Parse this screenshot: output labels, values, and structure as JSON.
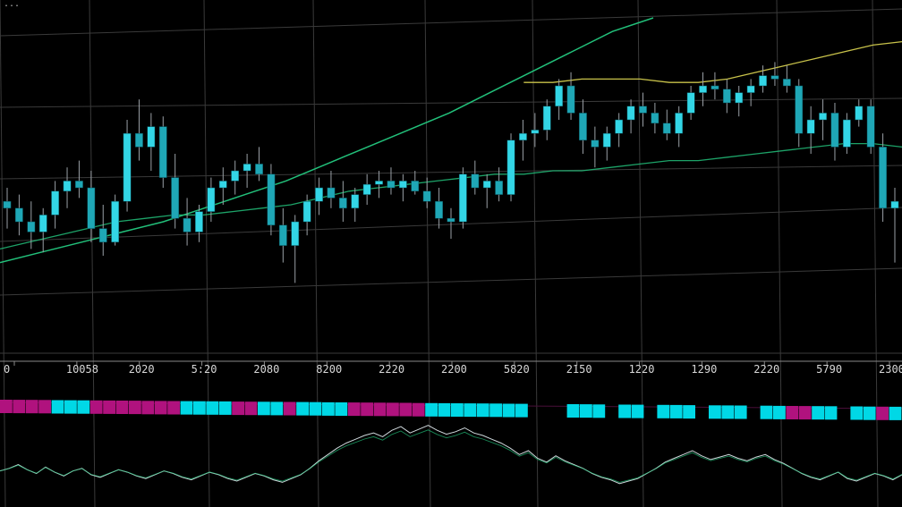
{
  "colors": {
    "background": "#000000",
    "grid": "#3a3a3a",
    "candle_up": "#33d6e6",
    "candle_up_dim": "#1fa7b6",
    "wick": "#9aa0a6",
    "ma_fast": "#22c07a",
    "ma_slow": "#c8c24a",
    "oscillator": "#cfd8dc",
    "signal_bull": "#00d8e6",
    "signal_bear": "#b0127e"
  },
  "header": {
    "text": "..."
  },
  "chart_data": {
    "type": "candlestick",
    "grid": true,
    "x_tick_labels": [
      "0",
      "10058",
      "2020",
      "5:20",
      "2080",
      "8200",
      "2220",
      "2200",
      "5820",
      "2150",
      "1220",
      "1290",
      "2220",
      "5790",
      "2300"
    ],
    "price_range": [
      0,
      100
    ],
    "candles": [
      {
        "o": 46,
        "h": 50,
        "l": 38,
        "c": 44
      },
      {
        "o": 44,
        "h": 48,
        "l": 36,
        "c": 40
      },
      {
        "o": 40,
        "h": 46,
        "l": 32,
        "c": 37
      },
      {
        "o": 37,
        "h": 44,
        "l": 31,
        "c": 42
      },
      {
        "o": 42,
        "h": 52,
        "l": 38,
        "c": 49
      },
      {
        "o": 49,
        "h": 56,
        "l": 44,
        "c": 52
      },
      {
        "o": 52,
        "h": 58,
        "l": 47,
        "c": 50
      },
      {
        "o": 50,
        "h": 55,
        "l": 34,
        "c": 38
      },
      {
        "o": 38,
        "h": 45,
        "l": 30,
        "c": 34
      },
      {
        "o": 34,
        "h": 48,
        "l": 33,
        "c": 46
      },
      {
        "o": 46,
        "h": 70,
        "l": 43,
        "c": 66
      },
      {
        "o": 66,
        "h": 76,
        "l": 58,
        "c": 62
      },
      {
        "o": 62,
        "h": 72,
        "l": 55,
        "c": 68
      },
      {
        "o": 68,
        "h": 71,
        "l": 50,
        "c": 53
      },
      {
        "o": 53,
        "h": 60,
        "l": 38,
        "c": 41
      },
      {
        "o": 41,
        "h": 47,
        "l": 33,
        "c": 37
      },
      {
        "o": 37,
        "h": 45,
        "l": 34,
        "c": 43
      },
      {
        "o": 43,
        "h": 53,
        "l": 40,
        "c": 50
      },
      {
        "o": 50,
        "h": 56,
        "l": 45,
        "c": 52
      },
      {
        "o": 52,
        "h": 58,
        "l": 48,
        "c": 55
      },
      {
        "o": 55,
        "h": 60,
        "l": 50,
        "c": 57
      },
      {
        "o": 57,
        "h": 62,
        "l": 52,
        "c": 54
      },
      {
        "o": 54,
        "h": 57,
        "l": 36,
        "c": 39
      },
      {
        "o": 39,
        "h": 44,
        "l": 28,
        "c": 33
      },
      {
        "o": 33,
        "h": 42,
        "l": 22,
        "c": 40
      },
      {
        "o": 40,
        "h": 48,
        "l": 36,
        "c": 46
      },
      {
        "o": 46,
        "h": 53,
        "l": 42,
        "c": 50
      },
      {
        "o": 50,
        "h": 55,
        "l": 44,
        "c": 47
      },
      {
        "o": 47,
        "h": 52,
        "l": 40,
        "c": 44
      },
      {
        "o": 44,
        "h": 50,
        "l": 40,
        "c": 48
      },
      {
        "o": 48,
        "h": 54,
        "l": 45,
        "c": 51
      },
      {
        "o": 51,
        "h": 55,
        "l": 47,
        "c": 52
      },
      {
        "o": 52,
        "h": 56,
        "l": 48,
        "c": 50
      },
      {
        "o": 50,
        "h": 54,
        "l": 46,
        "c": 52
      },
      {
        "o": 52,
        "h": 55,
        "l": 48,
        "c": 49
      },
      {
        "o": 49,
        "h": 53,
        "l": 44,
        "c": 46
      },
      {
        "o": 46,
        "h": 50,
        "l": 38,
        "c": 41
      },
      {
        "o": 41,
        "h": 44,
        "l": 35,
        "c": 40
      },
      {
        "o": 40,
        "h": 56,
        "l": 38,
        "c": 54
      },
      {
        "o": 54,
        "h": 58,
        "l": 48,
        "c": 50
      },
      {
        "o": 50,
        "h": 54,
        "l": 44,
        "c": 52
      },
      {
        "o": 52,
        "h": 56,
        "l": 46,
        "c": 48
      },
      {
        "o": 48,
        "h": 66,
        "l": 46,
        "c": 64
      },
      {
        "o": 64,
        "h": 70,
        "l": 58,
        "c": 66
      },
      {
        "o": 66,
        "h": 72,
        "l": 62,
        "c": 67
      },
      {
        "o": 67,
        "h": 76,
        "l": 64,
        "c": 74
      },
      {
        "o": 74,
        "h": 82,
        "l": 70,
        "c": 80
      },
      {
        "o": 80,
        "h": 84,
        "l": 70,
        "c": 72
      },
      {
        "o": 72,
        "h": 76,
        "l": 60,
        "c": 64
      },
      {
        "o": 64,
        "h": 68,
        "l": 56,
        "c": 62
      },
      {
        "o": 62,
        "h": 68,
        "l": 58,
        "c": 66
      },
      {
        "o": 66,
        "h": 72,
        "l": 62,
        "c": 70
      },
      {
        "o": 70,
        "h": 76,
        "l": 66,
        "c": 74
      },
      {
        "o": 74,
        "h": 78,
        "l": 68,
        "c": 72
      },
      {
        "o": 72,
        "h": 75,
        "l": 66,
        "c": 69
      },
      {
        "o": 69,
        "h": 73,
        "l": 64,
        "c": 66
      },
      {
        "o": 66,
        "h": 74,
        "l": 62,
        "c": 72
      },
      {
        "o": 72,
        "h": 80,
        "l": 70,
        "c": 78
      },
      {
        "o": 78,
        "h": 84,
        "l": 74,
        "c": 80
      },
      {
        "o": 80,
        "h": 84,
        "l": 76,
        "c": 79
      },
      {
        "o": 79,
        "h": 82,
        "l": 72,
        "c": 75
      },
      {
        "o": 75,
        "h": 80,
        "l": 71,
        "c": 78
      },
      {
        "o": 78,
        "h": 82,
        "l": 74,
        "c": 80
      },
      {
        "o": 80,
        "h": 86,
        "l": 78,
        "c": 83
      },
      {
        "o": 83,
        "h": 87,
        "l": 80,
        "c": 82
      },
      {
        "o": 82,
        "h": 86,
        "l": 78,
        "c": 80
      },
      {
        "o": 80,
        "h": 82,
        "l": 62,
        "c": 66
      },
      {
        "o": 66,
        "h": 74,
        "l": 60,
        "c": 70
      },
      {
        "o": 70,
        "h": 76,
        "l": 64,
        "c": 72
      },
      {
        "o": 72,
        "h": 75,
        "l": 58,
        "c": 62
      },
      {
        "o": 62,
        "h": 72,
        "l": 60,
        "c": 70
      },
      {
        "o": 70,
        "h": 76,
        "l": 68,
        "c": 74
      },
      {
        "o": 74,
        "h": 76,
        "l": 60,
        "c": 62
      },
      {
        "o": 62,
        "h": 66,
        "l": 40,
        "c": 44
      },
      {
        "o": 44,
        "h": 50,
        "l": 28,
        "c": 46
      }
    ],
    "ma_fast": [
      32,
      34,
      36,
      38,
      40,
      41,
      42,
      42,
      43,
      44,
      45,
      47,
      49,
      50,
      51,
      52,
      53,
      54,
      54,
      55,
      55,
      56,
      57,
      58,
      58,
      59,
      60,
      61,
      62,
      63,
      63,
      62
    ],
    "ma_slow": [
      null,
      null,
      null,
      null,
      null,
      null,
      null,
      null,
      null,
      null,
      null,
      null,
      null,
      null,
      null,
      null,
      null,
      null,
      81,
      81,
      82,
      82,
      82,
      81,
      81,
      82,
      84,
      86,
      88,
      90,
      92,
      93
    ],
    "trend_line": [
      28,
      31,
      34,
      37,
      40,
      44,
      48,
      52,
      57,
      62,
      67,
      72,
      78,
      84,
      90,
      96,
      100
    ],
    "signal_strip": [
      "bear",
      "bear",
      "bear",
      "bear",
      "bull",
      "bull",
      "bull",
      "bear",
      "bear",
      "bear",
      "bear",
      "bear",
      "bear",
      "bear",
      "bull",
      "bull",
      "bull",
      "bull",
      "bear",
      "bear",
      "bull",
      "bull",
      "bear",
      "bull",
      "bull",
      "bull",
      "bull",
      "bear",
      "bear",
      "bear",
      "bear",
      "bear",
      "bear",
      "bull",
      "bull",
      "bull",
      "bull",
      "bull",
      "bull",
      "bull",
      "bull",
      "none",
      "none",
      "none",
      "bull",
      "bull",
      "bull",
      "none",
      "bull",
      "bull",
      "none",
      "bull",
      "bull",
      "bull",
      "none",
      "bull",
      "bull",
      "bull",
      "none",
      "bull",
      "bull",
      "bear",
      "bear",
      "bull",
      "bull",
      "none",
      "bull",
      "bull",
      "bear",
      "bull"
    ],
    "oscillator": [
      20,
      22,
      25,
      21,
      18,
      23,
      19,
      16,
      20,
      22,
      17,
      15,
      18,
      21,
      19,
      16,
      14,
      17,
      20,
      18,
      15,
      13,
      16,
      19,
      17,
      14,
      12,
      15,
      18,
      16,
      13,
      11,
      14,
      17,
      22,
      28,
      33,
      38,
      42,
      45,
      48,
      50,
      47,
      52,
      55,
      50,
      53,
      56,
      52,
      49,
      51,
      54,
      50,
      48,
      45,
      42,
      38,
      33,
      36,
      30,
      27,
      32,
      28,
      25,
      22,
      18,
      15,
      13,
      10,
      12,
      14,
      18,
      22,
      27,
      30,
      33,
      36,
      32,
      29,
      31,
      33,
      30,
      28,
      31,
      33,
      29,
      26,
      22,
      18,
      15,
      13,
      16,
      19,
      14,
      12,
      15,
      18,
      16,
      13,
      17
    ]
  }
}
